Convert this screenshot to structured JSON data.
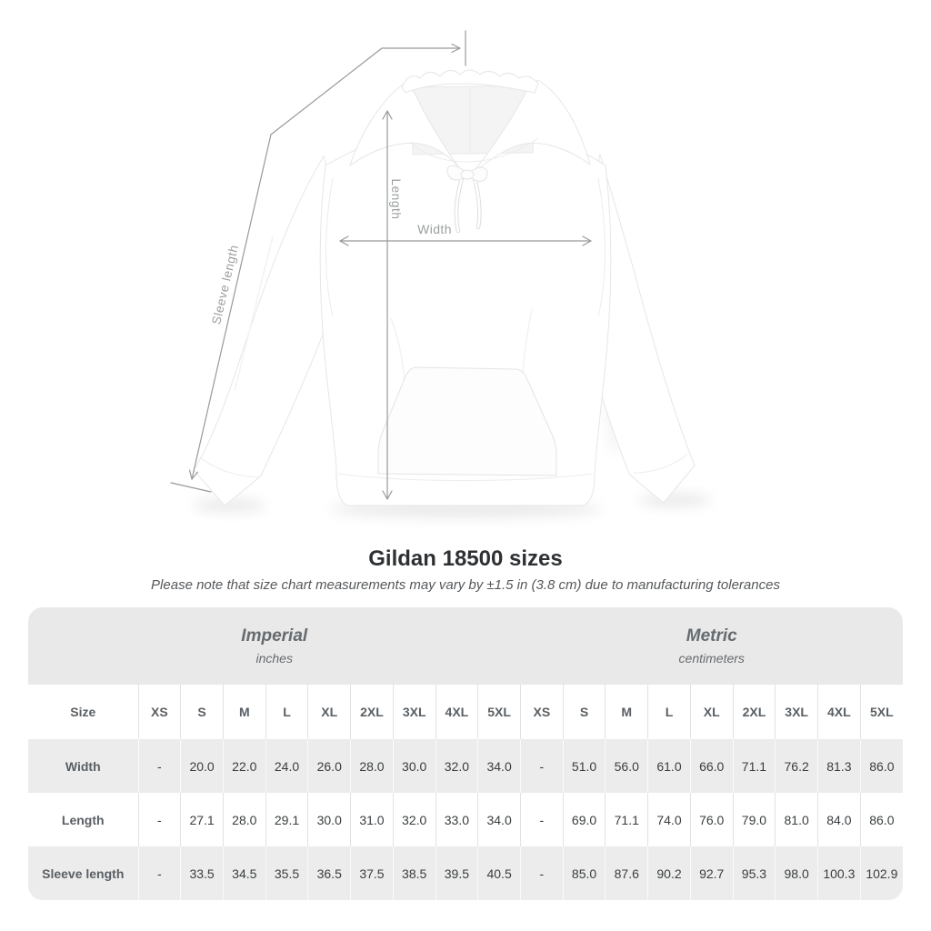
{
  "diagram": {
    "garment": "white-hoodie-front",
    "labels": {
      "sleeve": "Sleeve length",
      "length": "Length",
      "width": "Width"
    },
    "line_color": "#97999b",
    "label_color": "#9b9ea0"
  },
  "header": {
    "title": "Gildan 18500 sizes",
    "note": "Please note that size chart measurements may vary by ±1.5 in (3.8 cm) due to manufacturing tolerances"
  },
  "table_style": {
    "band_bg": "#e9e9e9",
    "row_alt_bg": "#ececec",
    "header_text": "#595f64",
    "value_text": "#3a3d3f"
  },
  "chart_data": {
    "type": "table",
    "title": "Gildan 18500 sizes",
    "size_label": "Size",
    "sections": [
      {
        "label": "Imperial",
        "unit": "inches"
      },
      {
        "label": "Metric",
        "unit": "centimeters"
      }
    ],
    "sizes": [
      "XS",
      "S",
      "M",
      "L",
      "XL",
      "2XL",
      "3XL",
      "4XL",
      "5XL"
    ],
    "rows": [
      {
        "label": "Width",
        "imperial": [
          "-",
          "20.0",
          "22.0",
          "24.0",
          "26.0",
          "28.0",
          "30.0",
          "32.0",
          "34.0"
        ],
        "metric": [
          "-",
          "51.0",
          "56.0",
          "61.0",
          "66.0",
          "71.1",
          "76.2",
          "81.3",
          "86.0"
        ]
      },
      {
        "label": "Length",
        "imperial": [
          "-",
          "27.1",
          "28.0",
          "29.1",
          "30.0",
          "31.0",
          "32.0",
          "33.0",
          "34.0"
        ],
        "metric": [
          "-",
          "69.0",
          "71.1",
          "74.0",
          "76.0",
          "79.0",
          "81.0",
          "84.0",
          "86.0"
        ]
      },
      {
        "label": "Sleeve length",
        "imperial": [
          "-",
          "33.5",
          "34.5",
          "35.5",
          "36.5",
          "37.5",
          "38.5",
          "39.5",
          "40.5"
        ],
        "metric": [
          "-",
          "85.0",
          "87.6",
          "90.2",
          "92.7",
          "95.3",
          "98.0",
          "100.3",
          "102.9"
        ]
      }
    ]
  }
}
